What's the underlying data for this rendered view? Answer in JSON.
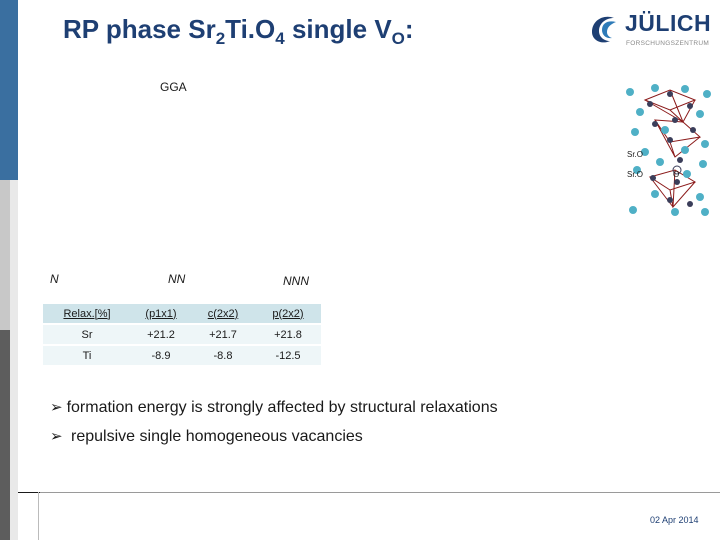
{
  "title": {
    "part1": "RP phase Sr",
    "sub1": "2",
    "part2": "Ti.O",
    "sub2": "4",
    "part3": " single V",
    "sub3": "O",
    "part4": ":"
  },
  "logo": {
    "name": "JÜLICH",
    "subtitle": "FORSCHUNGSZENTRUM"
  },
  "method_label": "GGA",
  "structure_labels": {
    "n": "N",
    "nn": "NN",
    "nnn": "NNN",
    "sro_top": "Sr.O",
    "sro_bottom": "Sr.O",
    "vacancy": "O"
  },
  "table": {
    "headers": [
      "Relax.[%]",
      "(p1x1)",
      "c(2x2)",
      "p(2x2)"
    ],
    "rows": [
      [
        "Sr",
        "+21.2",
        "+21.7",
        "+21.8"
      ],
      [
        "Ti",
        "-8.9",
        "-8.8",
        "-12.5"
      ]
    ]
  },
  "bullets": [
    "formation energy is strongly affected by structural relaxations",
    "repulsive single homogeneous vacancies"
  ],
  "footer": {
    "date": "02 Apr 2014"
  },
  "colors": {
    "title": "#1e3f73",
    "header_cell": "#cfe4ea",
    "row_cell": "#eef6f8",
    "sr_atom": "#4fb0c6",
    "o_atom": "#3b3e5a",
    "octahedron": "#8b1a1a"
  }
}
